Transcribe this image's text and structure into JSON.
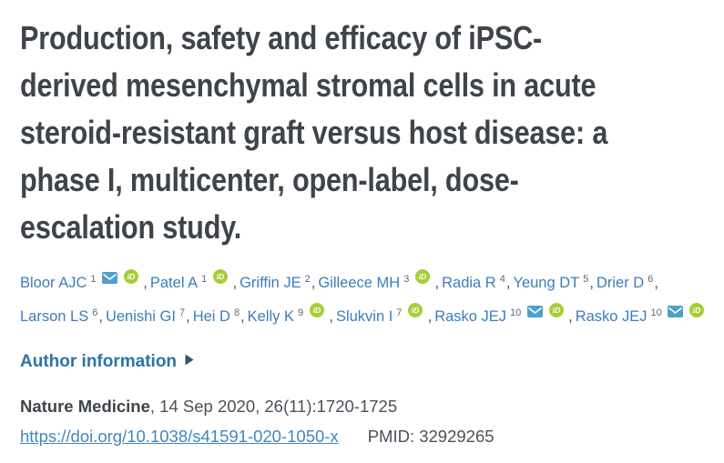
{
  "title": {
    "lines": [
      "Production, safety and efficacy of iPSC-",
      "derived mesenchymal stromal cells in acute",
      "steroid-resistant graft versus host disease: a",
      "phase I, multicenter, open-label, dose-",
      "escalation study."
    ]
  },
  "authors": {
    "separator": ", ",
    "rows": [
      [
        {
          "name": "Bloor AJC",
          "aff": "1",
          "email": true,
          "orcid": true
        },
        {
          "name": "Patel A",
          "aff": "1",
          "email": false,
          "orcid": true
        },
        {
          "name": "Griffin JE",
          "aff": "2",
          "email": false,
          "orcid": false
        },
        {
          "name": "Gilleece MH",
          "aff": "3",
          "email": false,
          "orcid": true
        },
        {
          "name": "Radia R",
          "aff": "4",
          "email": false,
          "orcid": false
        },
        {
          "name": "Yeung DT",
          "aff": "5",
          "email": false,
          "orcid": false
        },
        {
          "name": "Drier D",
          "aff": "6",
          "email": false,
          "orcid": false
        }
      ],
      [
        {
          "name": "Larson LS",
          "aff": "6",
          "email": false,
          "orcid": false
        },
        {
          "name": "Uenishi GI",
          "aff": "7",
          "email": false,
          "orcid": false
        },
        {
          "name": "Hei D",
          "aff": "8",
          "email": false,
          "orcid": false
        },
        {
          "name": "Kelly K",
          "aff": "9",
          "email": false,
          "orcid": true
        },
        {
          "name": "Slukvin I",
          "aff": "7",
          "email": false,
          "orcid": true
        },
        {
          "name": "Rasko JEJ",
          "aff": "10",
          "email": true,
          "orcid": true
        },
        {
          "name": "Rasko JEJ",
          "aff": "10",
          "email": true,
          "orcid": true
        }
      ]
    ]
  },
  "author_info": {
    "label": "Author information"
  },
  "citation": {
    "journal": "Nature Medicine",
    "details": ", 14 Sep 2020, 26(11):1720-1725",
    "doi_url": "https://doi.org/10.1038/s41591-020-1050-x",
    "pmid": "PMID: 32929265"
  },
  "icons": {
    "orcid_text": "iD",
    "orcid_color": "#a6ce39",
    "email_color": "#4f9ecf",
    "expander_color": "#3a536a"
  }
}
